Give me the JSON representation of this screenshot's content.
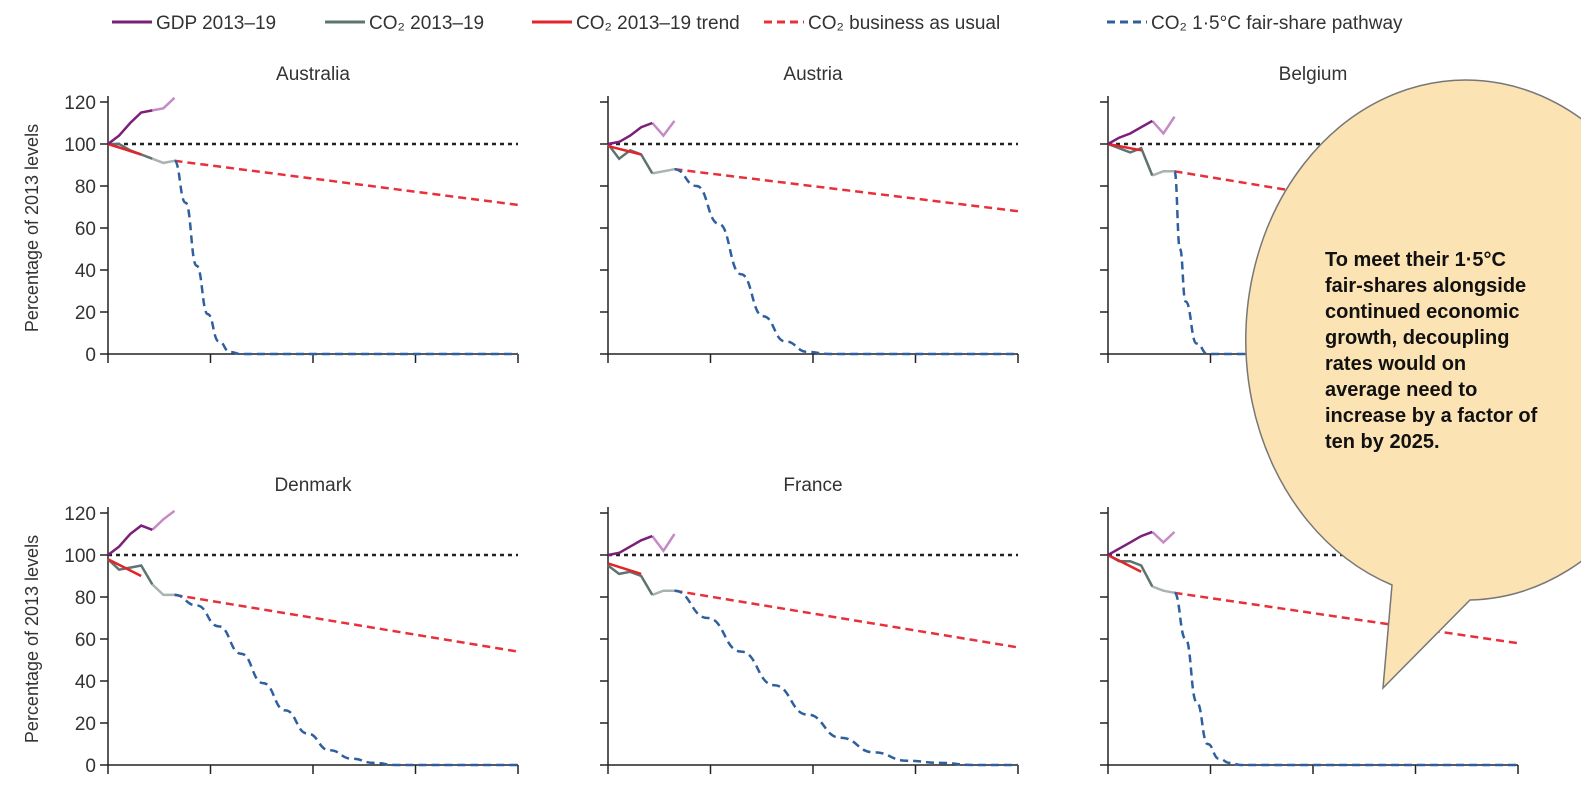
{
  "legend": [
    {
      "label": "GDP 2013–19",
      "color": "#7b1f7a",
      "dash": "solid"
    },
    {
      "label": "CO₂ 2013–19",
      "color": "#5e7470",
      "dash": "solid"
    },
    {
      "label": "CO₂ 2013–19 trend",
      "color": "#e0252b",
      "dash": "solid"
    },
    {
      "label": "CO₂ business as usual",
      "color": "#e8303a",
      "dash": "dashed"
    },
    {
      "label": "CO₂ 1·5°C fair-share pathway",
      "color": "#2f5f9e",
      "dash": "dashed"
    }
  ],
  "callout": {
    "text": "To meet their 1·5°C\nfair-shares alongside\ncontinued economic\ngrowth, decoupling\nrates would on\naverage need to\nincrease by a factor of\nten by 2025.",
    "fill": "#fbe3b3",
    "stroke": "#777777"
  },
  "ylabel": "Percentage of 2013 levels",
  "chart_data": [
    {
      "type": "line",
      "title": "Australia",
      "ylabel": "Percentage of 2013 levels",
      "ylim": [
        0,
        120
      ],
      "yticks": [
        "0",
        "20",
        "40",
        "60",
        "80",
        "100",
        "120"
      ],
      "reference_line": 100,
      "gdp": {
        "x": [
          2013,
          2014,
          2015,
          2016,
          2017,
          2018,
          2019,
          2020
        ],
        "y": [
          100,
          104,
          110,
          115,
          116,
          117,
          122,
          null
        ]
      },
      "co2": {
        "x": [
          2013,
          2014,
          2015,
          2016,
          2017,
          2018,
          2019
        ],
        "y": [
          100,
          100,
          97,
          95,
          93,
          91,
          92
        ]
      },
      "co2_trend": {
        "x": [
          2013,
          2016
        ],
        "y": [
          100,
          95
        ]
      },
      "bau": {
        "x": [
          2019,
          2050
        ],
        "y": [
          92,
          71
        ]
      },
      "pathway": {
        "x": [
          2019,
          2020,
          2021,
          2022,
          2023,
          2024,
          2025,
          2026,
          2050
        ],
        "y": [
          92,
          72,
          42,
          19,
          6,
          1,
          0,
          0,
          0
        ]
      }
    },
    {
      "type": "line",
      "title": "Austria",
      "ylabel": "Percentage of 2013 levels",
      "ylim": [
        0,
        120
      ],
      "yticks": [
        "0",
        "20",
        "40",
        "60",
        "80",
        "100",
        "120"
      ],
      "reference_line": 100,
      "gdp": {
        "x": [
          2013,
          2014,
          2015,
          2016,
          2017,
          2018,
          2019
        ],
        "y": [
          100,
          101,
          104,
          108,
          110,
          104,
          111
        ]
      },
      "co2": {
        "x": [
          2013,
          2014,
          2015,
          2016,
          2017,
          2018,
          2019
        ],
        "y": [
          100,
          93,
          97,
          95,
          86,
          87,
          88
        ]
      },
      "co2_trend": {
        "x": [
          2013,
          2016
        ],
        "y": [
          99,
          95
        ]
      },
      "bau": {
        "x": [
          2019,
          2050
        ],
        "y": [
          88,
          68
        ]
      },
      "pathway": {
        "x": [
          2019,
          2021,
          2023,
          2025,
          2027,
          2029,
          2031,
          2033,
          2050
        ],
        "y": [
          88,
          80,
          62,
          38,
          18,
          6,
          1,
          0,
          0
        ]
      }
    },
    {
      "type": "line",
      "title": "Belgium",
      "ylabel": "Percentage of 2013 levels",
      "ylim": [
        0,
        120
      ],
      "yticks": [
        "0",
        "20",
        "40",
        "60",
        "80",
        "100",
        "120"
      ],
      "reference_line": 100,
      "gdp": {
        "x": [
          2013,
          2014,
          2015,
          2016,
          2017,
          2018,
          2019
        ],
        "y": [
          100,
          103,
          105,
          108,
          111,
          105,
          113
        ]
      },
      "co2": {
        "x": [
          2013,
          2014,
          2015,
          2016,
          2017,
          2018,
          2019
        ],
        "y": [
          100,
          98,
          96,
          98,
          85,
          87,
          87
        ]
      },
      "co2_trend": {
        "x": [
          2013,
          2016
        ],
        "y": [
          100,
          97
        ]
      },
      "bau": {
        "x": [
          2019,
          2050
        ],
        "y": [
          87,
          60
        ]
      },
      "pathway": {
        "x": [
          2019,
          2019.5,
          2020,
          2021,
          2022,
          2050
        ],
        "y": [
          87,
          50,
          25,
          5,
          0,
          0
        ]
      }
    },
    {
      "type": "line",
      "title": "Denmark",
      "ylabel": "Percentage of 2013 levels",
      "ylim": [
        0,
        120
      ],
      "yticks": [
        "0",
        "20",
        "40",
        "60",
        "80",
        "100",
        "120"
      ],
      "reference_line": 100,
      "gdp": {
        "x": [
          2013,
          2014,
          2015,
          2016,
          2017,
          2018,
          2019
        ],
        "y": [
          100,
          104,
          110,
          114,
          112,
          117,
          121
        ]
      },
      "co2": {
        "x": [
          2013,
          2014,
          2015,
          2016,
          2017,
          2018,
          2019
        ],
        "y": [
          98,
          93,
          94,
          95,
          86,
          81,
          81
        ]
      },
      "co2_trend": {
        "x": [
          2013,
          2016
        ],
        "y": [
          98,
          90
        ]
      },
      "bau": {
        "x": [
          2019,
          2050
        ],
        "y": [
          81,
          54
        ]
      },
      "pathway": {
        "x": [
          2019,
          2021,
          2023,
          2025,
          2027,
          2029,
          2031,
          2033,
          2035,
          2037,
          2039,
          2050
        ],
        "y": [
          81,
          76,
          66,
          53,
          39,
          26,
          15,
          7,
          3,
          1,
          0,
          0
        ]
      }
    },
    {
      "type": "line",
      "title": "France",
      "ylabel": "Percentage of 2013 levels",
      "ylim": [
        0,
        120
      ],
      "yticks": [
        "0",
        "20",
        "40",
        "60",
        "80",
        "100",
        "120"
      ],
      "reference_line": 100,
      "gdp": {
        "x": [
          2013,
          2014,
          2015,
          2016,
          2017,
          2018,
          2019
        ],
        "y": [
          100,
          101,
          104,
          107,
          109,
          102,
          110
        ]
      },
      "co2": {
        "x": [
          2013,
          2014,
          2015,
          2016,
          2017,
          2018,
          2019
        ],
        "y": [
          95,
          91,
          92,
          90,
          81,
          83,
          83
        ]
      },
      "co2_trend": {
        "x": [
          2013,
          2016
        ],
        "y": [
          96,
          91
        ]
      },
      "bau": {
        "x": [
          2019,
          2050
        ],
        "y": [
          83,
          56
        ]
      },
      "pathway": {
        "x": [
          2019,
          2022,
          2025,
          2028,
          2031,
          2034,
          2037,
          2040,
          2043,
          2046,
          2050
        ],
        "y": [
          83,
          70,
          54,
          38,
          24,
          13,
          6,
          2,
          1,
          0,
          0
        ]
      }
    },
    {
      "type": "line",
      "title": "",
      "ylabel": "Percentage of 2013 levels",
      "ylim": [
        0,
        120
      ],
      "yticks": [
        "0",
        "20",
        "40",
        "60",
        "80",
        "100",
        "120"
      ],
      "reference_line": 100,
      "gdp": {
        "x": [
          2013,
          2014,
          2015,
          2016,
          2017,
          2018,
          2019
        ],
        "y": [
          100,
          103,
          106,
          109,
          111,
          106,
          111
        ]
      },
      "co2": {
        "x": [
          2013,
          2014,
          2015,
          2016,
          2017,
          2018,
          2019
        ],
        "y": [
          100,
          97,
          97,
          95,
          85,
          83,
          82
        ]
      },
      "co2_trend": {
        "x": [
          2013,
          2016
        ],
        "y": [
          100,
          92
        ]
      },
      "bau": {
        "x": [
          2019,
          2050
        ],
        "y": [
          82,
          58
        ]
      },
      "pathway": {
        "x": [
          2019,
          2020,
          2021,
          2022,
          2023,
          2024,
          2025,
          2050
        ],
        "y": [
          82,
          60,
          30,
          10,
          3,
          1,
          0,
          0
        ]
      }
    }
  ]
}
